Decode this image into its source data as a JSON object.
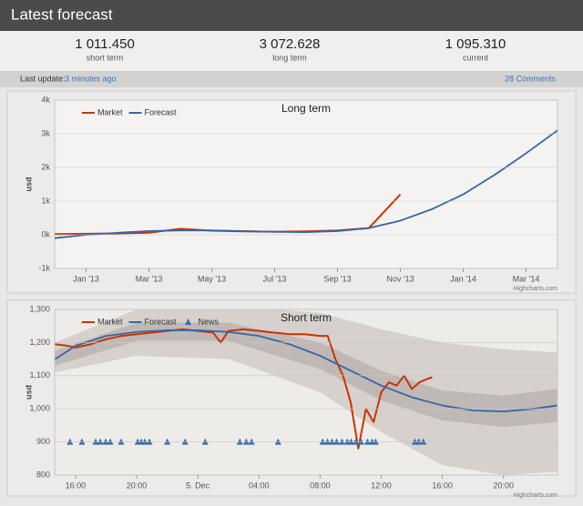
{
  "header": {
    "title": "Latest forecast"
  },
  "stats": [
    {
      "value": "1 011.450",
      "label": "short term"
    },
    {
      "value": "3 072.628",
      "label": "long term"
    },
    {
      "value": "1 095.310",
      "label": "current"
    }
  ],
  "update": {
    "label": "Last update:",
    "link": "3 minutes ago",
    "comments": "28 Comments"
  },
  "chart_data": [
    {
      "type": "line",
      "title": "Long term",
      "y_label": "usd",
      "credits": "Highcharts.com",
      "xlim": [
        "2012-12",
        "2014-04"
      ],
      "xticks": [
        {
          "value": "2013-01",
          "label": "Jan '13"
        },
        {
          "value": "2013-03",
          "label": "Mar '13"
        },
        {
          "value": "2013-05",
          "label": "May '13"
        },
        {
          "value": "2013-07",
          "label": "Jul '13"
        },
        {
          "value": "2013-09",
          "label": "Sep '13"
        },
        {
          "value": "2013-11",
          "label": "Nov '13"
        },
        {
          "value": "2014-01",
          "label": "Jan '14"
        },
        {
          "value": "2014-03",
          "label": "Mar '14"
        }
      ],
      "ylim": [
        -1000,
        4000
      ],
      "yticks": [
        {
          "value": -1000,
          "label": "-1k"
        },
        {
          "value": 0,
          "label": "0k"
        },
        {
          "value": 1000,
          "label": "1k"
        },
        {
          "value": 2000,
          "label": "2k"
        },
        {
          "value": 3000,
          "label": "3k"
        },
        {
          "value": 4000,
          "label": "4k"
        }
      ],
      "grid": true,
      "legend": "top-left",
      "series": [
        {
          "name": "Market",
          "color": "#cc3300",
          "x": [
            "2012-12",
            "2013-01",
            "2013-02",
            "2013-03",
            "2013-04",
            "2013-05",
            "2013-06",
            "2013-07",
            "2013-08",
            "2013-09",
            "2013-10",
            "2013-11"
          ],
          "values": [
            20,
            30,
            40,
            60,
            180,
            120,
            100,
            90,
            100,
            130,
            200,
            1200
          ]
        },
        {
          "name": "Forecast",
          "color": "#3366aa",
          "x": [
            "2012-12",
            "2013-01",
            "2013-02",
            "2013-03",
            "2013-04",
            "2013-05",
            "2013-06",
            "2013-07",
            "2013-08",
            "2013-09",
            "2013-10",
            "2013-11",
            "2013-12",
            "2014-01",
            "2014-02",
            "2014-03",
            "2014-04"
          ],
          "values": [
            -100,
            0,
            60,
            110,
            130,
            130,
            110,
            90,
            80,
            110,
            200,
            420,
            760,
            1200,
            1780,
            2420,
            3100
          ]
        }
      ]
    },
    {
      "type": "line",
      "title": "Short term",
      "y_label": "usd",
      "credits": "Highcharts.com",
      "xlim": [
        "12-04 14:38",
        "12-05 23:32"
      ],
      "xticks": [
        {
          "value": "12-04 16:00",
          "label": "16:00"
        },
        {
          "value": "12-04 20:00",
          "label": "20:00"
        },
        {
          "value": "12-05 00:00",
          "label": "5. Dec"
        },
        {
          "value": "12-05 04:00",
          "label": "04:00"
        },
        {
          "value": "12-05 08:00",
          "label": "08:00"
        },
        {
          "value": "12-05 12:00",
          "label": "12:00"
        },
        {
          "value": "12-05 16:00",
          "label": "16:00"
        },
        {
          "value": "12-05 20:00",
          "label": "20:00"
        }
      ],
      "ylim": [
        800,
        1300
      ],
      "yticks": [
        800,
        900,
        {
          "value": 1000,
          "label": "1,000"
        },
        {
          "value": 1100,
          "label": "1,100"
        },
        {
          "value": 1200,
          "label": "1,200"
        },
        {
          "value": 1300,
          "label": "1,300"
        }
      ],
      "grid": true,
      "legend": "top-left",
      "bands": [
        {
          "color": "#d6d1cd",
          "x": [
            "12-04 14:40",
            "12-04 20:00",
            "12-05 02:00",
            "12-05 08:00",
            "12-05 12:00",
            "12-05 16:00",
            "12-05 20:00",
            "12-05 23:30"
          ],
          "low": [
            1110,
            1160,
            1150,
            1050,
            930,
            830,
            800,
            810
          ],
          "high": [
            1200,
            1300,
            1310,
            1290,
            1240,
            1200,
            1180,
            1170
          ]
        },
        {
          "color": "#bfb8b4",
          "x": [
            "12-04 14:40",
            "12-04 20:00",
            "12-05 02:00",
            "12-05 08:00",
            "12-05 12:00",
            "12-05 16:00",
            "12-05 20:00",
            "12-05 23:30"
          ],
          "low": [
            1130,
            1205,
            1205,
            1120,
            1025,
            965,
            945,
            960
          ],
          "high": [
            1175,
            1260,
            1260,
            1200,
            1115,
            1055,
            1040,
            1060
          ]
        }
      ],
      "series": [
        {
          "name": "Market",
          "color": "#cc3300",
          "x": [
            "12-04 14:40",
            "12-04 15:30",
            "12-04 16:00",
            "12-04 17:00",
            "12-04 18:00",
            "12-04 19:00",
            "12-04 20:00",
            "12-04 21:00",
            "12-04 22:00",
            "12-04 23:00",
            "12-05 00:00",
            "12-05 01:00",
            "12-05 01:30",
            "12-05 02:00",
            "12-05 03:00",
            "12-05 04:00",
            "12-05 05:00",
            "12-05 06:00",
            "12-05 07:00",
            "12-05 08:00",
            "12-05 08:30",
            "12-05 09:00",
            "12-05 09:30",
            "12-05 10:00",
            "12-05 10:30",
            "12-05 11:00",
            "12-05 11:30",
            "12-05 12:00",
            "12-05 12:30",
            "12-05 13:00",
            "12-05 13:30",
            "12-05 14:00",
            "12-05 14:30",
            "12-05 15:00",
            "12-05 15:20"
          ],
          "values": [
            1195,
            1190,
            1185,
            1195,
            1210,
            1220,
            1225,
            1230,
            1235,
            1240,
            1235,
            1230,
            1200,
            1235,
            1240,
            1235,
            1230,
            1225,
            1225,
            1220,
            1220,
            1150,
            1100,
            1020,
            880,
            1000,
            960,
            1050,
            1080,
            1070,
            1100,
            1060,
            1080,
            1090,
            1095
          ]
        },
        {
          "name": "Forecast",
          "color": "#3366aa",
          "x": [
            "12-04 14:40",
            "12-04 16:00",
            "12-04 18:00",
            "12-04 20:00",
            "12-04 22:00",
            "12-05 00:00",
            "12-05 02:00",
            "12-05 04:00",
            "12-05 06:00",
            "12-05 08:00",
            "12-05 10:00",
            "12-05 12:00",
            "12-05 14:00",
            "12-05 16:00",
            "12-05 18:00",
            "12-05 20:00",
            "12-05 22:00",
            "12-05 23:30"
          ],
          "values": [
            1150,
            1190,
            1220,
            1232,
            1237,
            1237,
            1232,
            1220,
            1195,
            1160,
            1115,
            1070,
            1035,
            1010,
            995,
            992,
            1000,
            1010
          ]
        },
        {
          "name": "News",
          "color": "#3a6ea8",
          "marker": "triangle",
          "x": [
            "12-04 15:38",
            "12-04 16:25",
            "12-04 17:19",
            "12-04 17:37",
            "12-04 17:58",
            "12-04 18:16",
            "12-04 18:59",
            "12-04 20:04",
            "12-04 20:18",
            "12-04 20:32",
            "12-04 20:50",
            "12-04 22:00",
            "12-04 23:10",
            "12-05 00:29",
            "12-05 02:45",
            "12-05 03:10",
            "12-05 03:31",
            "12-05 05:15",
            "12-05 08:10",
            "12-05 08:29",
            "12-05 08:47",
            "12-05 09:05",
            "12-05 09:26",
            "12-05 09:47",
            "12-05 10:02",
            "12-05 10:20",
            "12-05 10:41",
            "12-05 11:06",
            "12-05 11:24",
            "12-05 11:38",
            "12-05 14:12",
            "12-05 14:27",
            "12-05 14:45"
          ],
          "values": [
            900,
            900,
            900,
            900,
            900,
            900,
            900,
            900,
            900,
            900,
            900,
            900,
            900,
            900,
            900,
            900,
            900,
            900,
            900,
            900,
            900,
            900,
            900,
            900,
            900,
            900,
            900,
            900,
            900,
            900,
            900,
            900,
            900
          ]
        }
      ]
    }
  ]
}
